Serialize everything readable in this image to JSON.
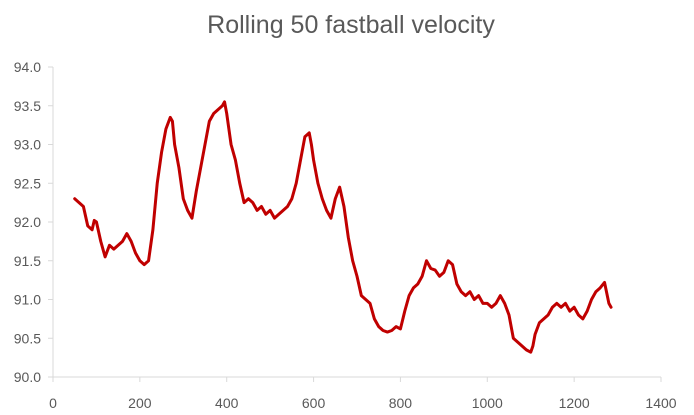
{
  "chart_data": {
    "type": "line",
    "title": "Rolling 50 fastball velocity",
    "xlabel": "",
    "ylabel": "",
    "xlim": [
      0,
      1400
    ],
    "ylim": [
      90.0,
      94.0
    ],
    "x_ticks": [
      "0",
      "200",
      "400",
      "600",
      "800",
      "1000",
      "1200",
      "1400"
    ],
    "y_ticks": [
      "90.0",
      "90.5",
      "91.0",
      "91.5",
      "92.0",
      "92.5",
      "93.0",
      "93.5",
      "94.0"
    ],
    "grid": false,
    "legend": "none",
    "series": [
      {
        "color": "#c00000",
        "x": [
          50,
          60,
          70,
          80,
          90,
          95,
          100,
          110,
          120,
          130,
          140,
          150,
          160,
          170,
          180,
          190,
          200,
          210,
          220,
          230,
          240,
          250,
          260,
          270,
          275,
          280,
          290,
          300,
          310,
          320,
          330,
          340,
          350,
          360,
          370,
          380,
          390,
          395,
          400,
          410,
          420,
          430,
          440,
          450,
          460,
          470,
          480,
          490,
          500,
          510,
          520,
          530,
          540,
          550,
          560,
          570,
          580,
          590,
          595,
          600,
          610,
          620,
          630,
          640,
          650,
          660,
          670,
          680,
          690,
          700,
          710,
          720,
          730,
          740,
          750,
          760,
          770,
          780,
          790,
          800,
          810,
          820,
          830,
          840,
          850,
          860,
          870,
          880,
          890,
          900,
          910,
          920,
          930,
          940,
          950,
          960,
          970,
          980,
          990,
          1000,
          1010,
          1020,
          1030,
          1040,
          1050,
          1060,
          1070,
          1080,
          1090,
          1100,
          1105,
          1110,
          1120,
          1130,
          1140,
          1150,
          1160,
          1170,
          1180,
          1190,
          1200,
          1210,
          1220,
          1230,
          1240,
          1250,
          1260,
          1270,
          1280,
          1285
        ],
        "values": [
          92.3,
          92.25,
          92.2,
          91.95,
          91.9,
          92.02,
          92.0,
          91.75,
          91.55,
          91.7,
          91.65,
          91.7,
          91.75,
          91.85,
          91.75,
          91.6,
          91.5,
          91.45,
          91.5,
          91.9,
          92.5,
          92.9,
          93.2,
          93.35,
          93.3,
          93.0,
          92.7,
          92.3,
          92.15,
          92.05,
          92.4,
          92.7,
          93.0,
          93.3,
          93.4,
          93.45,
          93.5,
          93.55,
          93.4,
          93.0,
          92.8,
          92.5,
          92.25,
          92.3,
          92.25,
          92.15,
          92.2,
          92.1,
          92.15,
          92.05,
          92.1,
          92.15,
          92.2,
          92.3,
          92.5,
          92.8,
          93.1,
          93.15,
          93.0,
          92.8,
          92.5,
          92.3,
          92.15,
          92.05,
          92.3,
          92.45,
          92.2,
          91.8,
          91.5,
          91.3,
          91.05,
          91.0,
          90.95,
          90.75,
          90.65,
          90.6,
          90.58,
          90.6,
          90.65,
          90.62,
          90.85,
          91.05,
          91.15,
          91.2,
          91.3,
          91.5,
          91.4,
          91.38,
          91.3,
          91.35,
          91.5,
          91.45,
          91.2,
          91.1,
          91.05,
          91.1,
          91.0,
          91.05,
          90.95,
          90.95,
          90.9,
          90.95,
          91.05,
          90.95,
          90.8,
          90.5,
          90.45,
          90.4,
          90.35,
          90.32,
          90.4,
          90.55,
          90.7,
          90.75,
          90.8,
          90.9,
          90.95,
          90.9,
          90.95,
          90.85,
          90.9,
          90.8,
          90.75,
          90.85,
          91.0,
          91.1,
          91.15,
          91.22,
          90.95,
          90.9
        ]
      }
    ]
  }
}
